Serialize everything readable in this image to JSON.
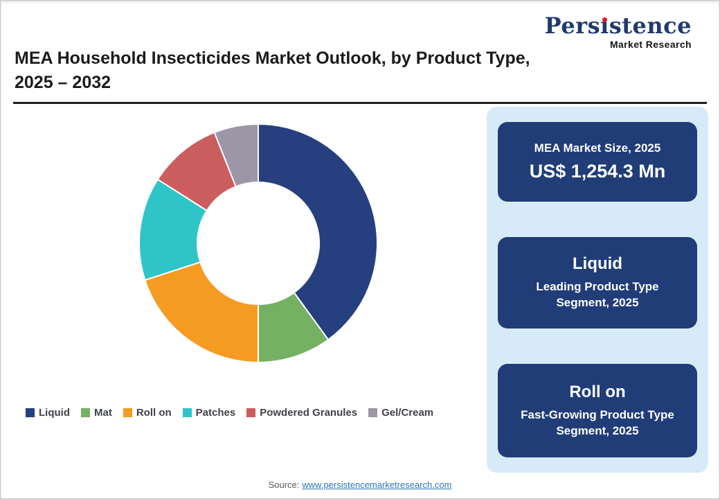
{
  "logo": {
    "name_prefix": "Pers",
    "name_i": "ı",
    "name_suffix": "stence",
    "subtitle": "Market Research"
  },
  "header": {
    "title_line1": "MEA Household Insecticides Market Outlook, by Product Type,",
    "title_line2": "2025 – 2032"
  },
  "chart_data": {
    "type": "pie",
    "subtype": "donut",
    "title": "MEA Household Insecticides Market Outlook, by Product Type, 2025 – 2032",
    "categories": [
      "Liquid",
      "Mat",
      "Roll on",
      "Patches",
      "Powdered Granules",
      "Gel/Cream"
    ],
    "values": [
      40,
      10,
      20,
      14,
      10,
      6
    ],
    "values_are_estimates": true,
    "colors": [
      "#263F7E",
      "#75B162",
      "#F69B22",
      "#2FC5C8",
      "#CC5D5F",
      "#9D96A7"
    ],
    "start_angle": "top",
    "direction": "clockwise",
    "inner_radius_ratio": 0.51,
    "legend_position": "bottom"
  },
  "side_panel": {
    "cards": [
      {
        "title": "MEA Market Size, 2025",
        "value": "US$ 1,254.3 Mn"
      },
      {
        "title": "Liquid",
        "subtitle": "Leading Product Type Segment, 2025"
      },
      {
        "title": "Roll on",
        "subtitle": "Fast-Growing Product Type Segment, 2025"
      }
    ]
  },
  "footer": {
    "label": "Source:",
    "link": "www.persistencemarketresearch.com"
  }
}
